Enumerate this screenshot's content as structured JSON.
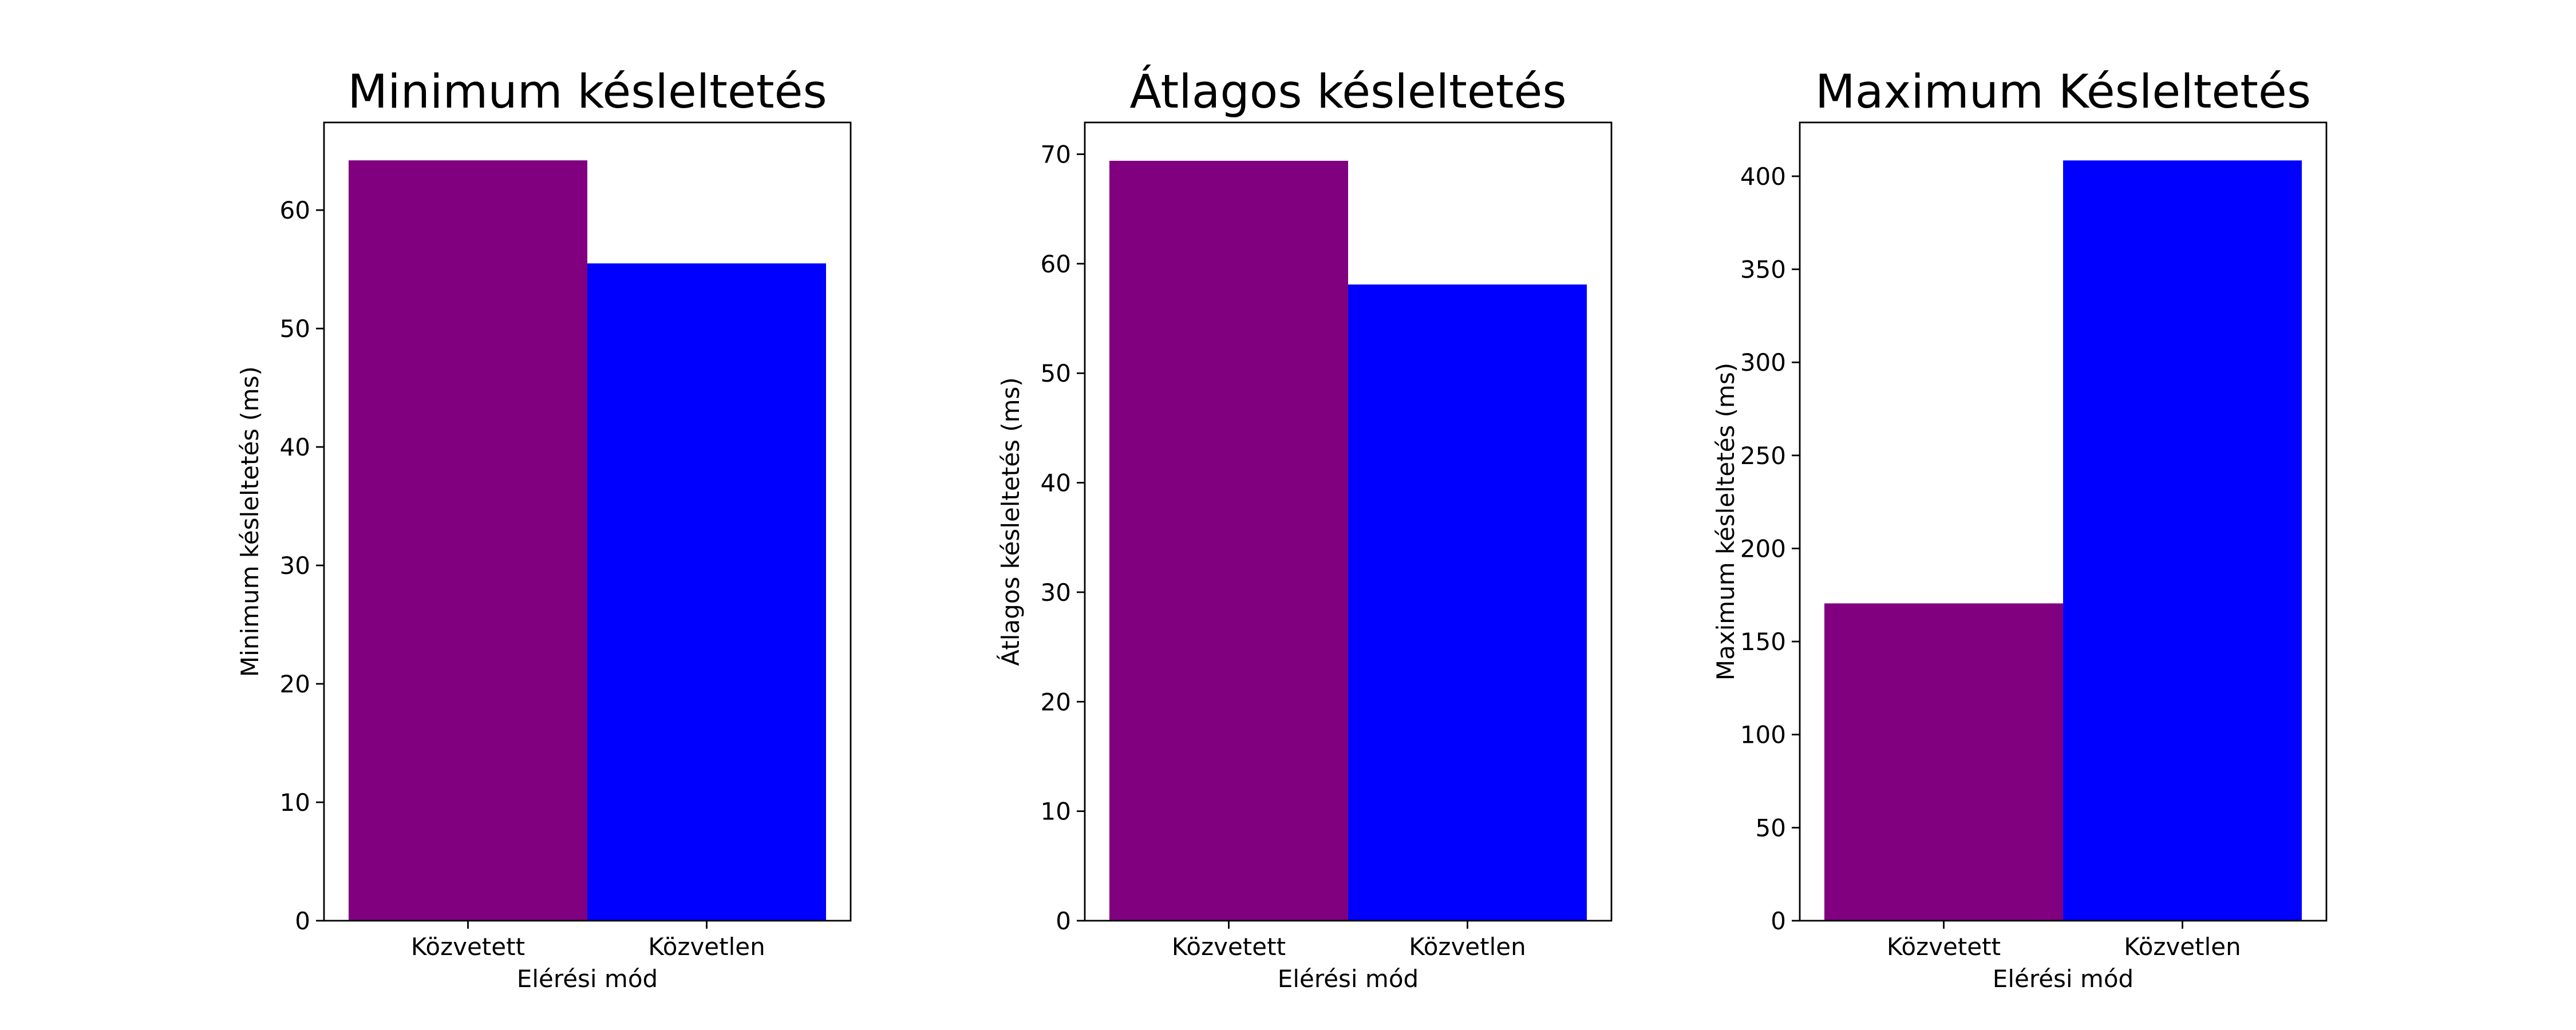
{
  "chart_data": [
    {
      "type": "bar",
      "title": "Minimum késleltetés",
      "xlabel": "Elérési mód",
      "ylabel": "Minimum késleltetés (ms)",
      "categories": [
        "Közvetett",
        "Közvetlen"
      ],
      "values": [
        64.2,
        55.5
      ],
      "colors": [
        "#800080",
        "#0000ff"
      ],
      "ylim": [
        0,
        67.4
      ],
      "yticks": [
        0,
        10,
        20,
        30,
        40,
        50,
        60
      ],
      "grid": false,
      "legend": "none"
    },
    {
      "type": "bar",
      "title": "Átlagos késleltetés",
      "xlabel": "Elérési mód",
      "ylabel": "Átlagos késleltetés (ms)",
      "categories": [
        "Közvetett",
        "Közvetlen"
      ],
      "values": [
        69.4,
        58.1
      ],
      "colors": [
        "#800080",
        "#0000ff"
      ],
      "ylim": [
        0,
        72.9
      ],
      "yticks": [
        0,
        10,
        20,
        30,
        40,
        50,
        60,
        70
      ],
      "grid": false,
      "legend": "none"
    },
    {
      "type": "bar",
      "title": "Maximum Késleltetés",
      "xlabel": "Elérési mód",
      "ylabel": "Maximum késleltetés (ms)",
      "categories": [
        "Közvetett",
        "Közvetlen"
      ],
      "values": [
        170.5,
        408.5
      ],
      "colors": [
        "#800080",
        "#0000ff"
      ],
      "ylim": [
        0,
        428.9
      ],
      "yticks": [
        0,
        50,
        100,
        150,
        200,
        250,
        300,
        350,
        400
      ],
      "grid": false,
      "legend": "none"
    }
  ]
}
